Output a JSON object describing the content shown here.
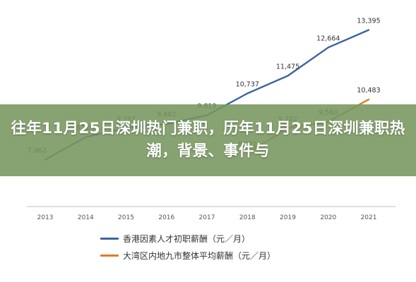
{
  "banner": {
    "title": "往年11月25日深圳热门兼职，历年11月25日深圳兼职热潮，背景、事件与"
  },
  "colors": {
    "series_1": "#3b63a3",
    "series_2": "#e07b24",
    "banner_bg": "#78965f"
  },
  "chart_data": {
    "type": "line",
    "x": [
      "2013",
      "2014",
      "2015",
      "2016",
      "2017",
      "2018",
      "2019",
      "2020",
      "2021"
    ],
    "series": [
      {
        "name": "香港因素人才初职薪酬（元／月）",
        "color": "#3b63a3",
        "values": [
          7962,
          8907,
          9282,
          9462,
          9819,
          10737,
          11475,
          12664,
          13395
        ],
        "labels": [
          "7,962",
          "8,907",
          "9,282",
          "9,462",
          "9,819",
          "10,737",
          "11,475",
          "12,664",
          "13,395"
        ]
      },
      {
        "name": "大湾区内地九市整体平均薪酬（元／月）",
        "color": "#e07b24",
        "values": [
          null,
          null,
          null,
          null,
          null,
          8231,
          9282,
          9560,
          10483
        ],
        "labels": [
          null,
          null,
          null,
          null,
          null,
          "8,231",
          "9,282",
          "9,560",
          "10,483"
        ]
      }
    ],
    "ylim": [
      6000,
      14000
    ],
    "grid": false,
    "legend": "bottom"
  }
}
